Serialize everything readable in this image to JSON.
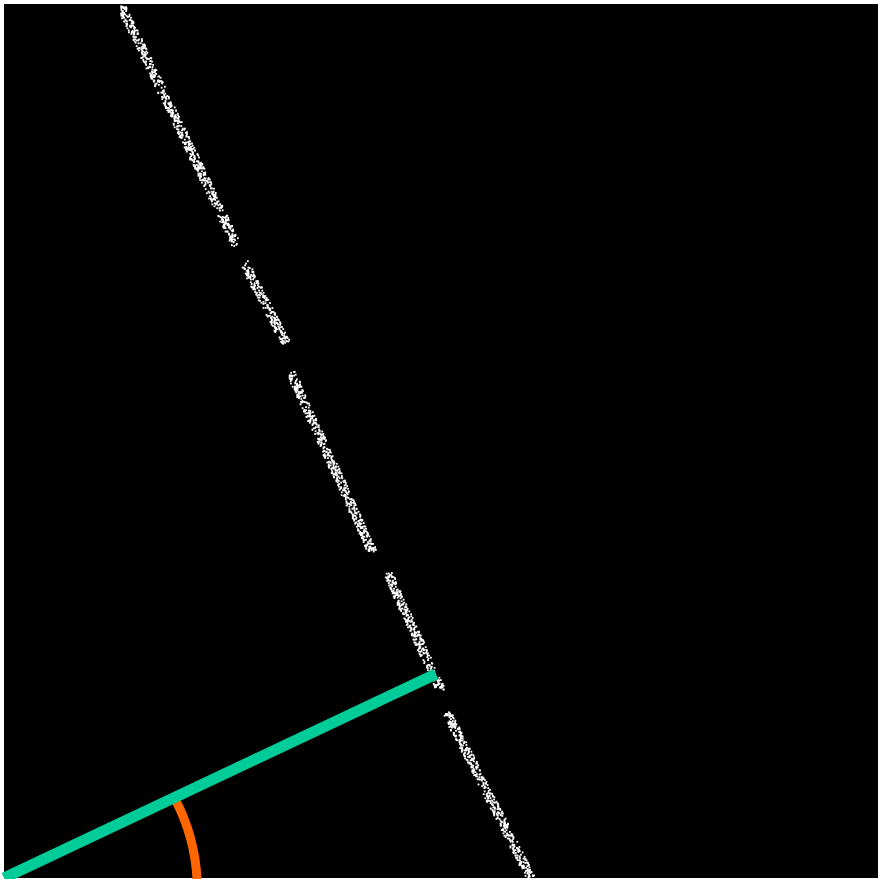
{
  "scene": {
    "description_free": true,
    "background_color": "#000000",
    "frame_color": "#ffffff",
    "detected_line": {
      "name": "speckled-line",
      "color": "#ffffff",
      "segments": 5
    },
    "normal_line": {
      "name": "normal-segment",
      "color": "#00cc99"
    },
    "angle_arc": {
      "name": "angle-arc",
      "color": "#ff6600"
    }
  }
}
